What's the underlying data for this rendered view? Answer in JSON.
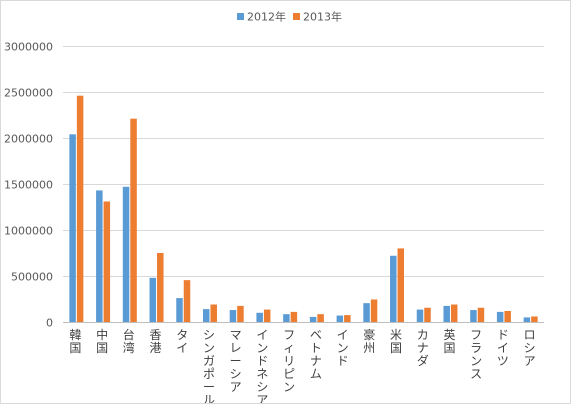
{
  "chart_data": {
    "type": "bar",
    "title": "",
    "xlabel": "",
    "ylabel": "",
    "ylim": [
      0,
      3000000
    ],
    "yticks": [
      0,
      500000,
      1000000,
      1500000,
      2000000,
      2500000,
      3000000
    ],
    "grid": true,
    "legend_position": "top-center",
    "categories": [
      "韓国",
      "中国",
      "台湾",
      "香港",
      "タイ",
      "シンガポール",
      "マレーシア",
      "インドネシア",
      "フィリピン",
      "ベトナム",
      "インド",
      "豪州",
      "米国",
      "カナダ",
      "英国",
      "フランス",
      "ドイツ",
      "ロシア"
    ],
    "series": [
      {
        "name": "2012年",
        "color": "#5b9bd5",
        "values": [
          2040000,
          1430000,
          1470000,
          480000,
          260000,
          140000,
          130000,
          100000,
          85000,
          55000,
          70000,
          205000,
          720000,
          135000,
          175000,
          130000,
          110000,
          50000
        ]
      },
      {
        "name": "2013年",
        "color": "#ed7d31",
        "values": [
          2460000,
          1310000,
          2210000,
          750000,
          455000,
          190000,
          175000,
          135000,
          110000,
          85000,
          75000,
          245000,
          800000,
          155000,
          190000,
          155000,
          120000,
          60000
        ]
      }
    ]
  }
}
